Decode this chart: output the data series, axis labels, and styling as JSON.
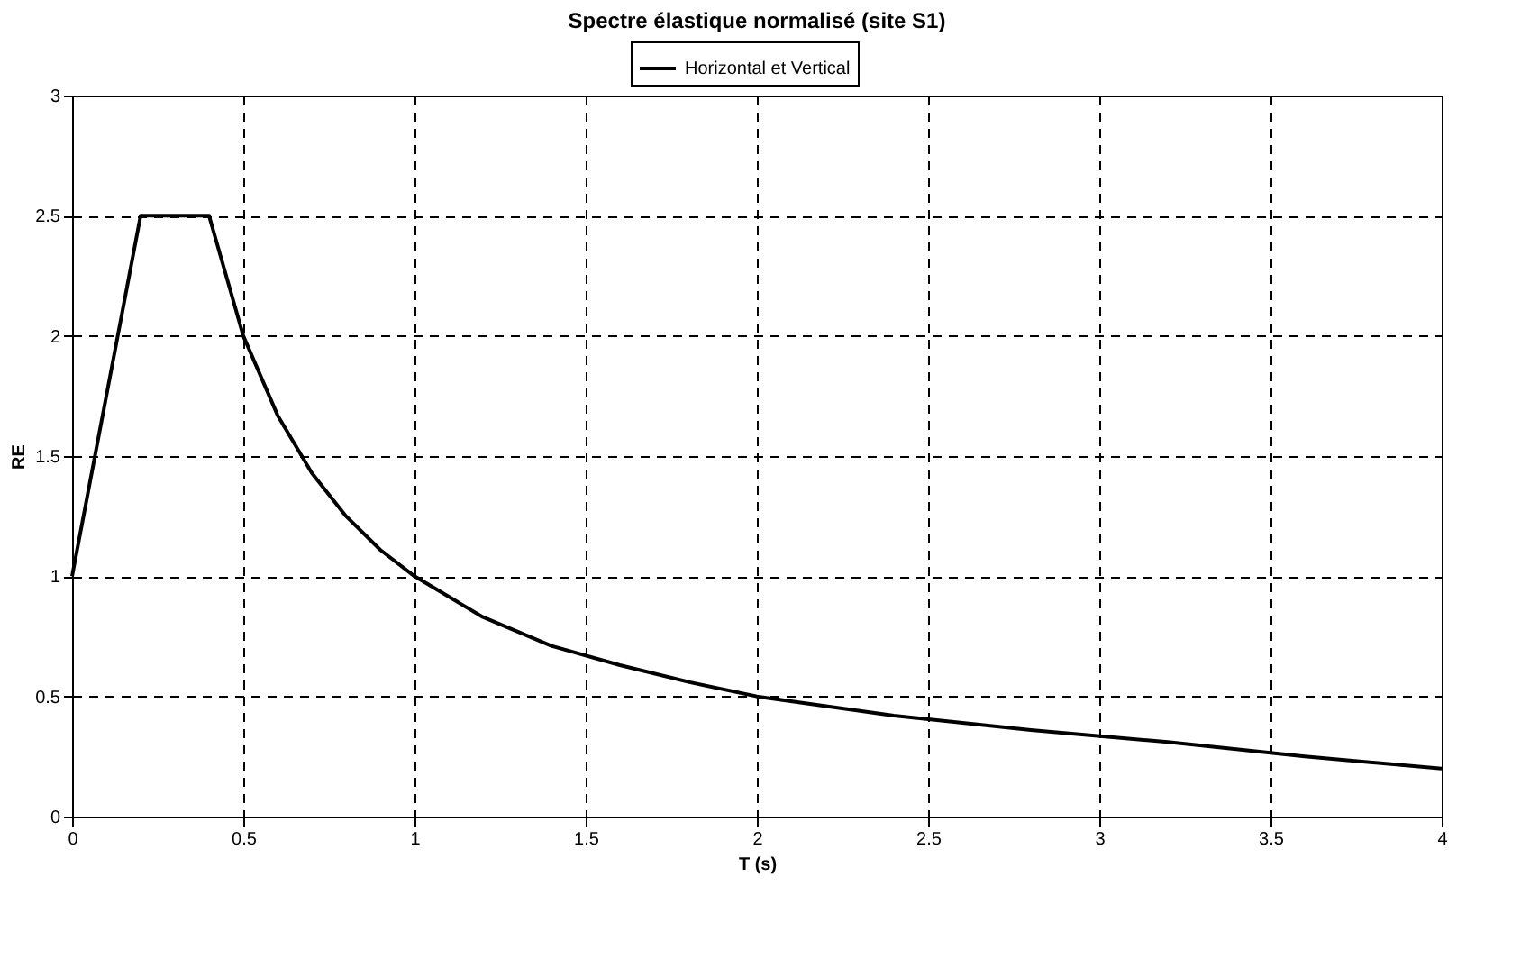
{
  "chart_data": {
    "type": "line",
    "title": "Spectre élastique normalisé (site S1)",
    "xlabel": "T (s)",
    "ylabel": "RE",
    "x": [
      0,
      0.2,
      0.4,
      0.5,
      0.6,
      0.7,
      0.8,
      0.9,
      1.0,
      1.2,
      1.4,
      1.6,
      1.8,
      2.0,
      2.4,
      2.8,
      3.2,
      3.6,
      4.0
    ],
    "series": [
      {
        "name": "Horizontal et Vertical",
        "color": "#000000",
        "values": [
          1,
          2.5,
          2.5,
          2.0,
          1.67,
          1.43,
          1.25,
          1.11,
          1.0,
          0.83,
          0.71,
          0.63,
          0.56,
          0.5,
          0.42,
          0.36,
          0.31,
          0.25,
          0.2
        ]
      }
    ],
    "xlim": [
      0,
      4
    ],
    "xticks": [
      0,
      0.5,
      1,
      1.5,
      2,
      2.5,
      3,
      3.5,
      4
    ],
    "ylim": [
      0,
      3
    ],
    "yticks": [
      0,
      0.5,
      1,
      1.5,
      2,
      2.5,
      3
    ],
    "grid": true,
    "legend": "top",
    "line_style": "solid",
    "marker": "none"
  }
}
